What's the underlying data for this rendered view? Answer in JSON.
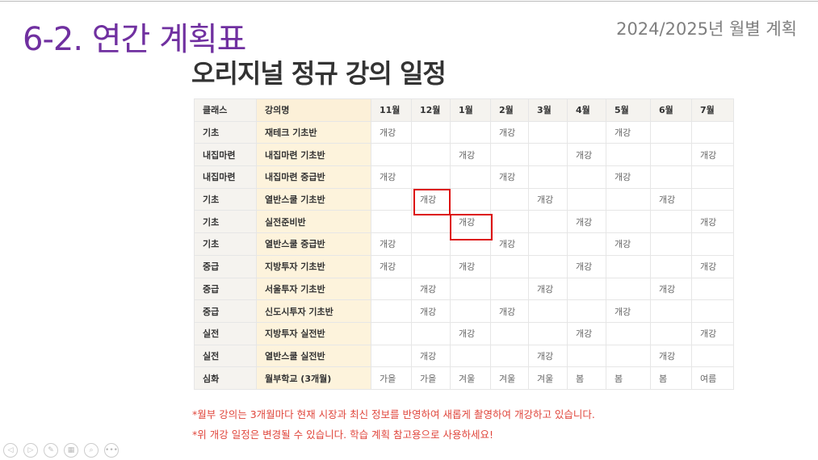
{
  "slide": {
    "title": "6-2. 연간 계획표",
    "subtitle": "2024/2025년 월별 계획",
    "heading": "오리지널 정규 강의 일정"
  },
  "table": {
    "headers": [
      "클래스",
      "강의명",
      "11월",
      "12월",
      "1월",
      "2월",
      "3월",
      "4월",
      "5월",
      "6월",
      "7월"
    ],
    "rows": [
      [
        "기초",
        "재테크 기초반",
        "개강",
        "",
        "",
        "개강",
        "",
        "",
        "개강",
        "",
        ""
      ],
      [
        "내집마련",
        "내집마련 기초반",
        "",
        "",
        "개강",
        "",
        "",
        "개강",
        "",
        "",
        "개강"
      ],
      [
        "내집마련",
        "내집마련 중급반",
        "개강",
        "",
        "",
        "개강",
        "",
        "",
        "개강",
        "",
        ""
      ],
      [
        "기초",
        "열반스쿨 기초반",
        "",
        "개강",
        "",
        "",
        "개강",
        "",
        "",
        "개강",
        ""
      ],
      [
        "기초",
        "실전준비반",
        "",
        "",
        "개강",
        "",
        "",
        "개강",
        "",
        "",
        "개강"
      ],
      [
        "기초",
        "열반스쿨 중급반",
        "개강",
        "",
        "",
        "개강",
        "",
        "",
        "개강",
        "",
        ""
      ],
      [
        "중급",
        "지방투자 기초반",
        "개강",
        "",
        "개강",
        "",
        "",
        "개강",
        "",
        "",
        "개강"
      ],
      [
        "중급",
        "서울투자 기초반",
        "",
        "개강",
        "",
        "",
        "개강",
        "",
        "",
        "개강",
        ""
      ],
      [
        "중급",
        "신도시투자 기초반",
        "",
        "개강",
        "",
        "개강",
        "",
        "",
        "개강",
        "",
        ""
      ],
      [
        "실전",
        "지방투자 실전반",
        "",
        "",
        "개강",
        "",
        "",
        "개강",
        "",
        "",
        "개강"
      ],
      [
        "실전",
        "열반스쿨 실전반",
        "",
        "개강",
        "",
        "",
        "개강",
        "",
        "",
        "개강",
        ""
      ],
      [
        "심화",
        "월부학교 (3개월)",
        "가을",
        "가을",
        "겨울",
        "겨울",
        "겨울",
        "봄",
        "봄",
        "봄",
        "여름"
      ]
    ]
  },
  "notes": [
    "*월부 강의는 3개월마다 현재 시장과 최신 정보를 반영하여 새롭게 촬영하여 개강하고 있습니다.",
    "*위 개강 일정은 변경될 수 있습니다. 학습 계획 참고용으로 사용하세요!"
  ],
  "nav_icons": [
    "prev-icon",
    "next-icon",
    "pen-icon",
    "slides-icon",
    "zoom-icon",
    "more-icon"
  ],
  "colors": {
    "title": "#7030a0",
    "highlight": "#d11111",
    "note": "#e0463c"
  }
}
